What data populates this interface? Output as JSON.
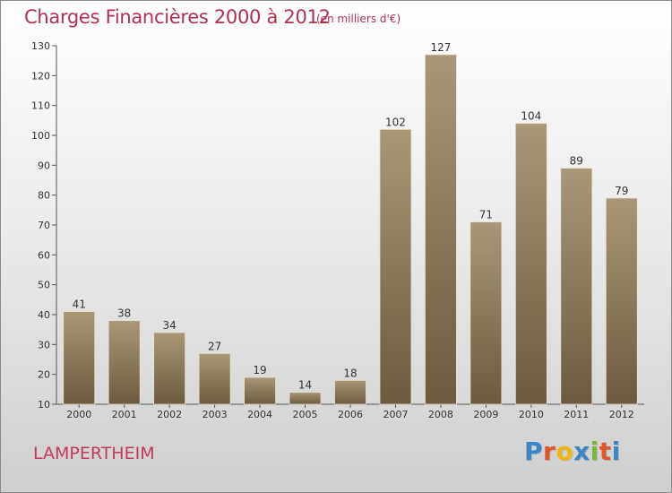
{
  "header": {
    "title": "Charges Financières 2000 à 2012",
    "subtitle": "(en milliers d'€)"
  },
  "footer": {
    "commune": "LAMPERTHEIM",
    "logo_letters": [
      "P",
      "r",
      "o",
      "x",
      "i",
      "t",
      "i"
    ],
    "logo_colors": [
      "#3a86c8",
      "#e0552b",
      "#f0b617",
      "#3a86c8",
      "#7bb63c",
      "#e0552b",
      "#3a86c8"
    ]
  },
  "colors": {
    "bar_top": "#a89878",
    "bar_bottom": "#6b5a40",
    "axis": "#555555",
    "title": "#b0304e"
  },
  "chart_data": {
    "type": "bar",
    "categories": [
      "2000",
      "2001",
      "2002",
      "2003",
      "2004",
      "2005",
      "2006",
      "2007",
      "2008",
      "2009",
      "2010",
      "2011",
      "2012"
    ],
    "values": [
      41,
      38,
      34,
      27,
      19,
      14,
      18,
      102,
      127,
      71,
      104,
      89,
      79
    ],
    "title": "Charges Financières 2000 à 2012",
    "subtitle": "(en milliers d'€)",
    "xlabel": "",
    "ylabel": "",
    "ylim": [
      10,
      130
    ],
    "yticks": [
      10,
      20,
      30,
      40,
      50,
      60,
      70,
      80,
      90,
      100,
      110,
      120,
      130
    ],
    "grid": false,
    "legend": "none"
  }
}
